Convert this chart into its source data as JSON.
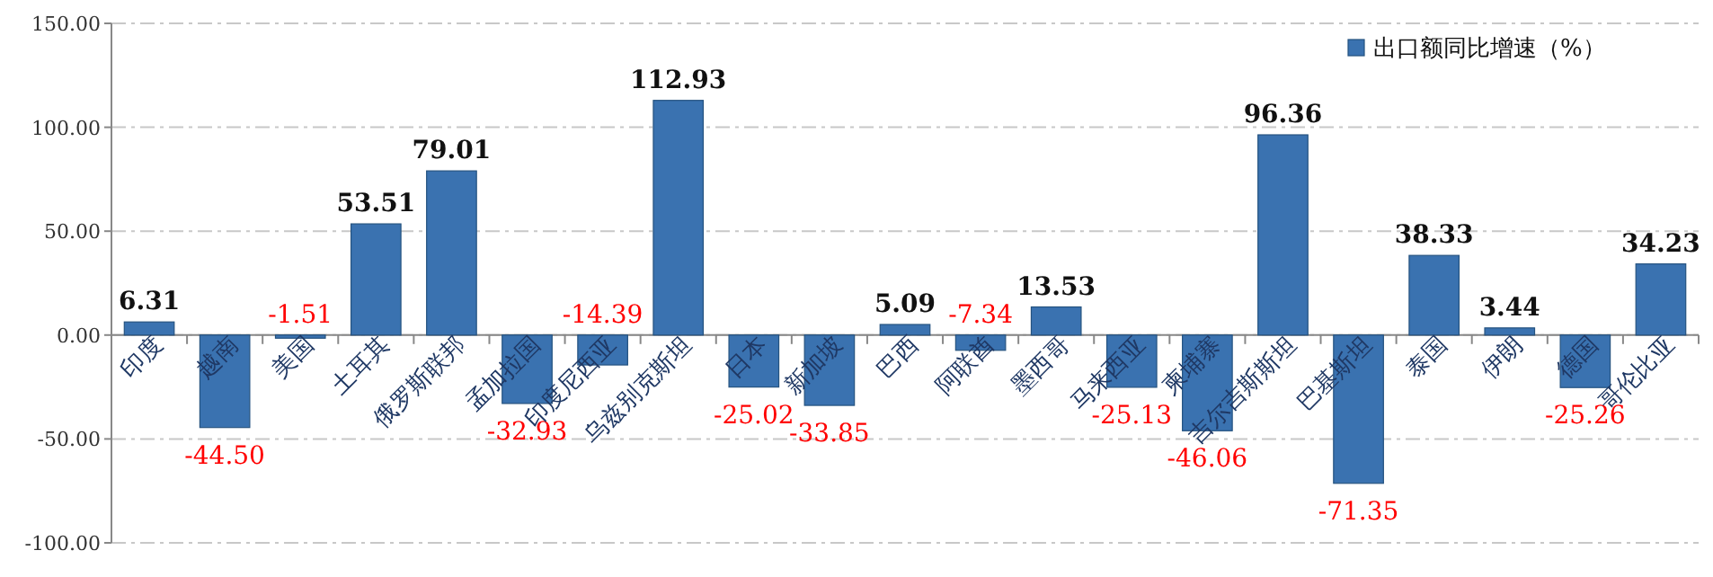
{
  "chart_data": {
    "type": "bar",
    "categories": [
      "印度",
      "越南",
      "美国",
      "土耳其",
      "俄罗斯联邦",
      "孟加拉国",
      "印度尼西亚",
      "乌兹别克斯坦",
      "日本",
      "新加坡",
      "巴西",
      "阿联酋",
      "墨西哥",
      "马来西亚",
      "柬埔寨",
      "吉尔吉斯斯坦",
      "巴基斯坦",
      "泰国",
      "伊朗",
      "德国",
      "哥伦比亚"
    ],
    "series": [
      {
        "name": "出口额同比增速（%）",
        "color": "#3a72b0",
        "values": [
          6.31,
          -44.5,
          -1.51,
          53.51,
          79.01,
          -32.93,
          -14.39,
          112.93,
          -25.02,
          -33.85,
          5.09,
          -7.34,
          13.53,
          -25.13,
          -46.06,
          96.36,
          -71.35,
          38.33,
          3.44,
          -25.26,
          34.23
        ],
        "value_labels": [
          "6.31",
          "-44.50",
          "-1.51",
          "53.51",
          "79.01",
          "-32.93",
          "-14.39",
          "112.93",
          "-25.02",
          "-33.85",
          "5.09",
          "-7.34",
          "13.53",
          "-25.13",
          "-46.06",
          "96.36",
          "-71.35",
          "38.33",
          "3.44",
          "-25.26",
          "34.23"
        ]
      }
    ],
    "ylim": [
      -100,
      150
    ],
    "yticks": [
      {
        "value": -100,
        "label": "-100.00"
      },
      {
        "value": -50,
        "label": "-50.00"
      },
      {
        "value": 0,
        "label": "0.00"
      },
      {
        "value": 50,
        "label": "50.00"
      },
      {
        "value": 100,
        "label": "100.00"
      },
      {
        "value": 150,
        "label": "150.00"
      }
    ],
    "grid": "y",
    "legend": "top right"
  }
}
